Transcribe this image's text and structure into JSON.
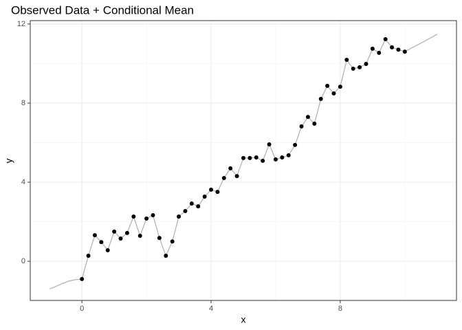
{
  "chart_data": {
    "type": "line",
    "title": "Observed Data + Conditional Mean",
    "xlabel": "x",
    "ylabel": "y",
    "xlim": [
      -1.6,
      11.6
    ],
    "ylim": [
      -1.98,
      12.17
    ],
    "xticks": [
      0,
      4,
      8
    ],
    "yticks": [
      0,
      4,
      8,
      12
    ],
    "minor_xticks": [
      2,
      6,
      10
    ],
    "minor_yticks": [
      2,
      6,
      10
    ],
    "grid": true,
    "series": [
      {
        "mode": "line",
        "color": "#b3b3b3",
        "x": [
          -1,
          -0.8,
          -0.6,
          -0.4,
          -0.2,
          0,
          0.2,
          0.4,
          0.6,
          0.8,
          1,
          1.2,
          1.4,
          1.6,
          1.8,
          2,
          2.2,
          2.4,
          2.6,
          2.8,
          3,
          3.2,
          3.4,
          3.6,
          3.8,
          4,
          4.2,
          4.4,
          4.6,
          4.8,
          5,
          5.2,
          5.4,
          5.6,
          5.8,
          6,
          6.2,
          6.4,
          6.6,
          6.8,
          7,
          7.2,
          7.4,
          7.6,
          7.8,
          8,
          8.2,
          8.4,
          8.6,
          8.8,
          9,
          9.2,
          9.4,
          9.6,
          9.8,
          10,
          10.2,
          10.4,
          10.6,
          10.8,
          11
        ],
        "values": [
          -1.4,
          -1.27,
          -1.12,
          -1.0,
          -0.93,
          -0.9,
          0.28,
          1.32,
          0.97,
          0.56,
          1.5,
          1.15,
          1.43,
          2.26,
          1.29,
          2.16,
          2.33,
          1.18,
          0.28,
          1.0,
          2.26,
          2.54,
          2.92,
          2.78,
          3.27,
          3.62,
          3.51,
          4.21,
          4.7,
          4.31,
          5.22,
          5.22,
          5.25,
          5.08,
          5.91,
          5.15,
          5.25,
          5.36,
          5.88,
          6.82,
          7.3,
          6.96,
          8.21,
          8.87,
          8.49,
          8.83,
          10.19,
          9.74,
          9.81,
          9.98,
          10.75,
          10.54,
          11.23,
          10.82,
          10.7,
          10.6,
          10.78,
          10.95,
          11.12,
          11.3,
          11.48
        ]
      },
      {
        "mode": "points",
        "color": "#000000",
        "x": [
          0,
          0.2,
          0.4,
          0.6,
          0.8,
          1,
          1.2,
          1.4,
          1.6,
          1.8,
          2,
          2.2,
          2.4,
          2.6,
          2.8,
          3,
          3.2,
          3.4,
          3.6,
          3.8,
          4,
          4.2,
          4.4,
          4.6,
          4.8,
          5,
          5.2,
          5.4,
          5.6,
          5.8,
          6,
          6.2,
          6.4,
          6.6,
          6.8,
          7,
          7.2,
          7.4,
          7.6,
          7.8,
          8,
          8.2,
          8.4,
          8.6,
          8.8,
          9,
          9.2,
          9.4,
          9.6,
          9.8,
          10
        ],
        "values": [
          -0.9,
          0.28,
          1.32,
          0.97,
          0.56,
          1.5,
          1.15,
          1.43,
          2.26,
          1.29,
          2.16,
          2.33,
          1.18,
          0.28,
          1.0,
          2.26,
          2.54,
          2.92,
          2.78,
          3.27,
          3.62,
          3.51,
          4.21,
          4.7,
          4.31,
          5.22,
          5.22,
          5.25,
          5.08,
          5.91,
          5.15,
          5.25,
          5.36,
          5.88,
          6.82,
          7.3,
          6.96,
          8.21,
          8.87,
          8.49,
          8.83,
          10.19,
          9.74,
          9.81,
          9.98,
          10.75,
          10.54,
          11.23,
          10.82,
          10.7,
          10.6
        ]
      }
    ]
  }
}
